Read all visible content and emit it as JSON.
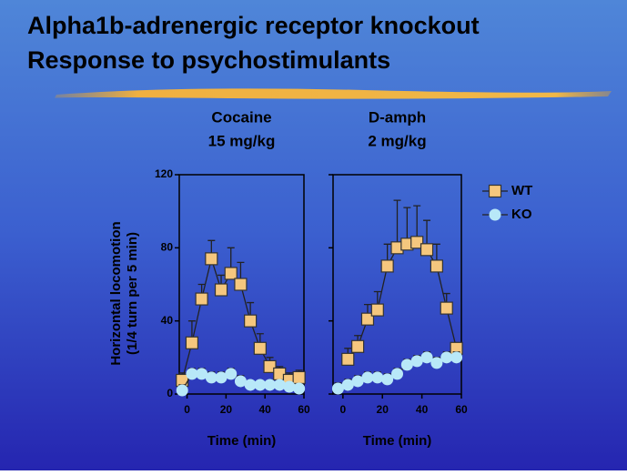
{
  "slide": {
    "title": [
      "Alpha1b-adrenergic receptor knockout",
      "Response to psychostimulants"
    ]
  },
  "chart_data": [
    {
      "type": "line",
      "title": "Cocaine",
      "subtitle": "15 mg/kg",
      "xlabel": "Time (min)",
      "ylabel": [
        "Horizontal locomotion",
        "(1/4 turn per 5 min)"
      ],
      "x": [
        -2.5,
        2.5,
        7.5,
        12.5,
        17.5,
        22.5,
        27.5,
        32.5,
        37.5,
        42.5,
        47.5,
        52.5,
        57.5
      ],
      "xlim": [
        -4,
        60
      ],
      "xticks": [
        0,
        20,
        40,
        60
      ],
      "ylim": [
        0,
        120
      ],
      "yticks": [
        0,
        40,
        80,
        120
      ],
      "ytick_labels": true,
      "series": [
        {
          "name": "WT",
          "color": "#f5c77e",
          "marker": "square",
          "values": [
            7.5,
            28,
            52,
            74,
            57,
            66,
            60,
            40,
            25,
            15,
            11,
            7.5,
            9
          ],
          "errors": [
            4,
            12,
            8,
            10,
            8,
            14,
            12,
            10,
            8,
            5,
            4,
            4,
            4
          ]
        },
        {
          "name": "KO",
          "color": "#b8e8f8",
          "marker": "circle",
          "values": [
            2,
            11,
            11,
            9,
            9,
            11,
            7,
            5,
            5,
            5,
            5,
            4,
            3
          ],
          "errors": [
            3,
            3,
            3,
            3,
            3,
            3,
            3,
            2,
            2,
            2,
            2,
            2,
            2
          ]
        }
      ]
    },
    {
      "type": "line",
      "title": "D-amph",
      "subtitle": "2 mg/kg",
      "xlabel": "Time (min)",
      "x": [
        -2.5,
        2.5,
        7.5,
        12.5,
        17.5,
        22.5,
        27.5,
        32.5,
        37.5,
        42.5,
        47.5,
        52.5,
        57.5
      ],
      "xlim": [
        -5,
        60
      ],
      "xticks": [
        0,
        20,
        40,
        60
      ],
      "ylim": [
        0,
        120
      ],
      "yticks": [
        0,
        40,
        80,
        120
      ],
      "ytick_labels": false,
      "series": [
        {
          "color": "#f5c77e",
          "marker": "square",
          "values": [
            null,
            19,
            26,
            41,
            46,
            70,
            80,
            82,
            83,
            79,
            70,
            47,
            25
          ],
          "errors": [
            null,
            6,
            6,
            8,
            10,
            12,
            26,
            20,
            20,
            16,
            12,
            8,
            3
          ]
        },
        {
          "color": "#b8e8f8",
          "marker": "circle",
          "values": [
            3,
            5,
            7,
            9,
            9,
            8,
            11,
            16,
            18,
            20,
            17,
            20,
            20
          ],
          "errors": [
            3,
            3,
            3,
            3,
            3,
            3,
            3,
            3,
            3,
            3,
            3,
            3,
            3
          ]
        }
      ]
    }
  ]
}
